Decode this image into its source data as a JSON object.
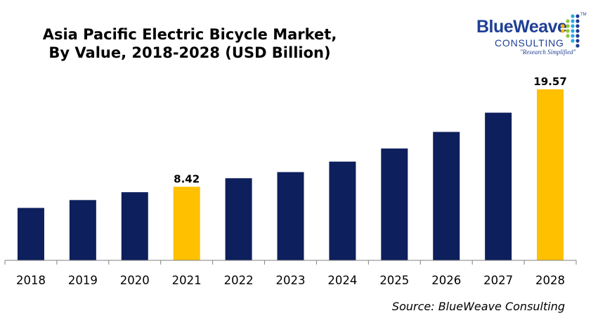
{
  "title_line1": "Asia Pacific Electric Bicycle Market,",
  "title_line2": "By Value, 2018-2028 (USD Billion)",
  "logo": {
    "name": "BlueWeave",
    "sub": "CONSULTING",
    "tagline": "\"Research Simplified\"",
    "tm": "TM"
  },
  "source": "Source: BlueWeave Consulting",
  "colors": {
    "bar": "#0d1f5c",
    "highlight": "#ffc000",
    "axis": "#808080"
  },
  "chart_data": {
    "type": "bar",
    "title": "Asia Pacific Electric Bicycle Market, By Value, 2018-2028 (USD Billion)",
    "categories": [
      "2018",
      "2019",
      "2020",
      "2021",
      "2022",
      "2023",
      "2024",
      "2025",
      "2026",
      "2027",
      "2028"
    ],
    "values": [
      6.0,
      6.9,
      7.8,
      8.42,
      9.4,
      10.1,
      11.3,
      12.8,
      14.7,
      16.9,
      19.57
    ],
    "highlighted": [
      "2021",
      "2028"
    ],
    "data_labels": {
      "2021": "8.42",
      "2028": "19.57"
    },
    "ylim": [
      0,
      19.57
    ],
    "grid": false,
    "legend": "none"
  }
}
